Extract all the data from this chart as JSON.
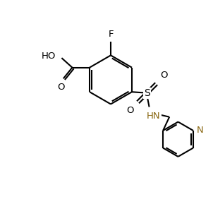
{
  "background_color": "#ffffff",
  "bond_color": "#000000",
  "nitrogen_color": "#8B6914",
  "lw": 1.5,
  "figsize": [
    3.02,
    2.89
  ],
  "dpi": 100,
  "xlim": [
    0,
    10
  ],
  "ylim": [
    0,
    9.5
  ]
}
